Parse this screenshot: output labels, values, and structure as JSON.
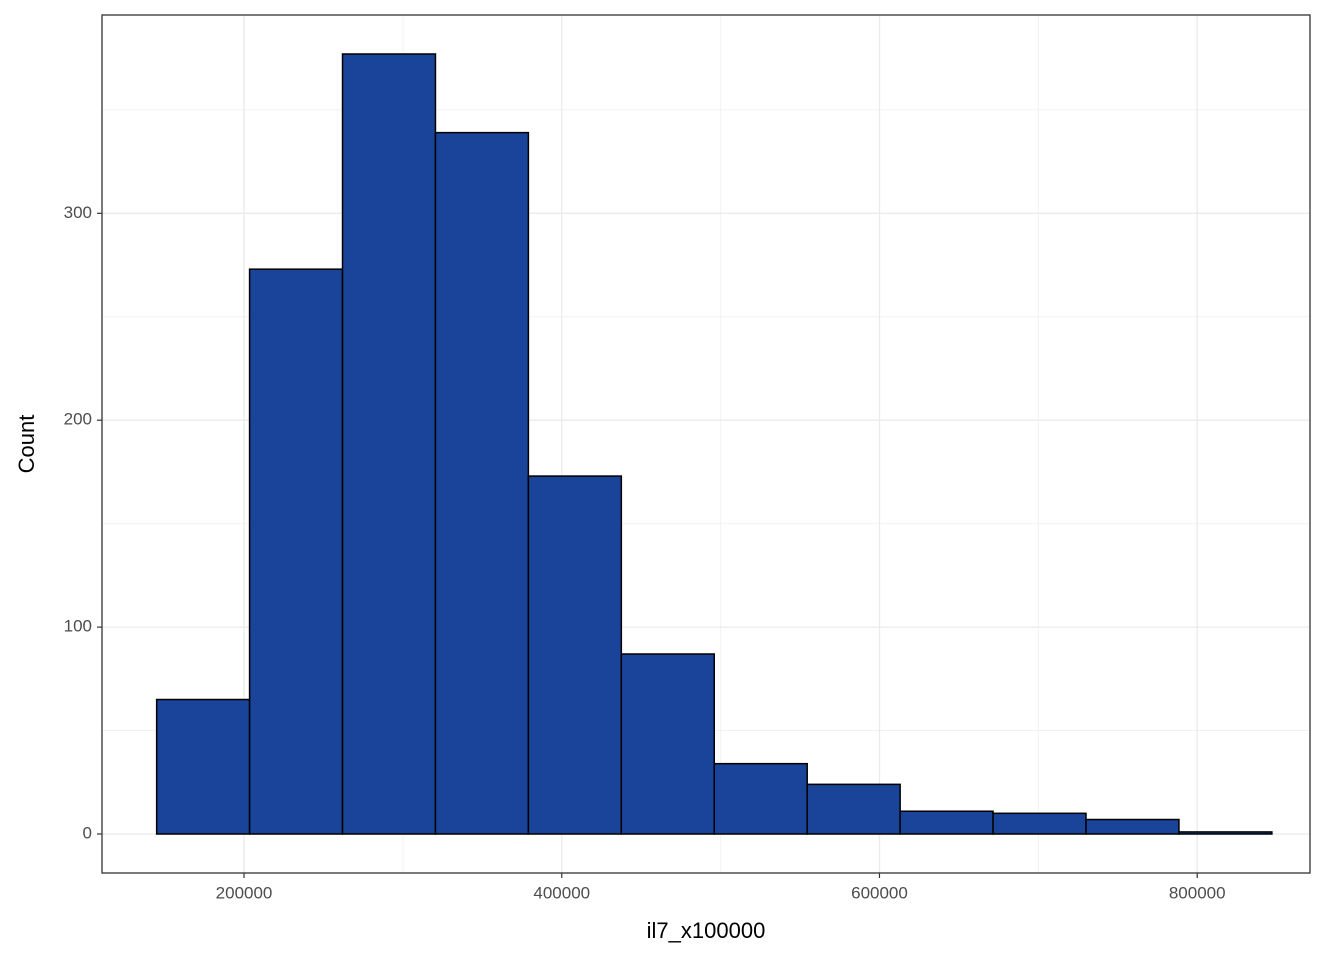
{
  "chart_data": {
    "type": "histogram",
    "x_label": "il7_x100000",
    "y_label": "Count",
    "bins": [
      145000,
      203500,
      262000,
      320500,
      379000,
      437500,
      496000,
      554500,
      613000,
      671500,
      730000,
      788500,
      847000
    ],
    "counts": [
      65,
      273,
      377,
      339,
      173,
      87,
      34,
      24,
      11,
      10,
      7,
      1
    ],
    "color": "#19449a",
    "edge_color": "#000000",
    "xlim": [
      110600,
      871000
    ],
    "ylim": [
      -18.85,
      395.85
    ],
    "xticks": [
      200000,
      400000,
      600000,
      800000
    ],
    "yticks": [
      0,
      100,
      200,
      300
    ],
    "grid": true
  }
}
